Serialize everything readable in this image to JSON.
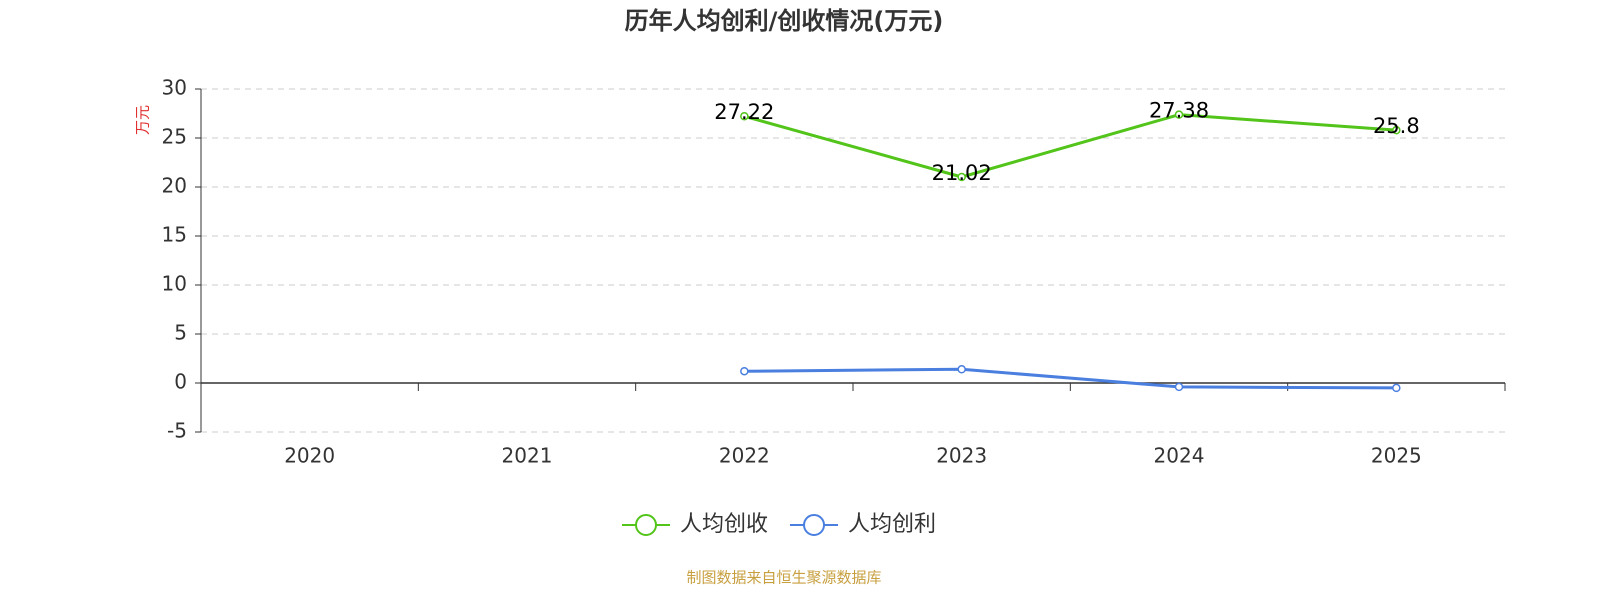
{
  "chart_data": {
    "type": "line",
    "title": "历年人均创利/创收情况(万元)",
    "y_label": "万元",
    "categories": [
      "2020",
      "2021",
      "2022",
      "2023",
      "2024",
      "2025"
    ],
    "series": [
      {
        "name": "人均创收",
        "color": "#52c41a",
        "values": [
          null,
          null,
          27.22,
          21.02,
          27.38,
          25.8
        ],
        "show_labels": true
      },
      {
        "name": "人均创利",
        "color": "#4a7fe0",
        "values": [
          null,
          null,
          1.2,
          1.4,
          -0.4,
          -0.5
        ],
        "show_labels": false
      }
    ],
    "ylim": [
      -5,
      30
    ],
    "yticks": [
      -5,
      0,
      5,
      10,
      15,
      20,
      25,
      30
    ],
    "grid": true,
    "source": "制图数据来自恒生聚源数据库"
  }
}
